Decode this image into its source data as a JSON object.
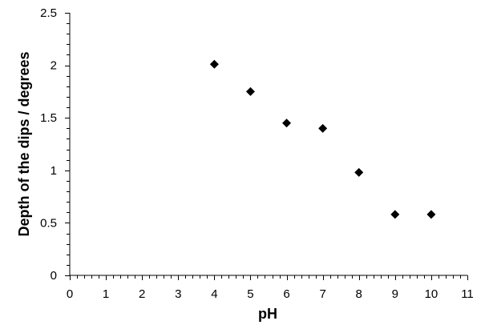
{
  "chart_data": {
    "type": "scatter",
    "xlabel": "pH",
    "ylabel": "Depth of the dips / degrees",
    "xlim": [
      0,
      11
    ],
    "ylim": [
      0,
      2.5
    ],
    "x_ticks": [
      "0",
      "1",
      "2",
      "3",
      "4",
      "5",
      "6",
      "7",
      "8",
      "9",
      "10",
      "11"
    ],
    "y_ticks": [
      "0",
      "0.5",
      "1",
      "1.5",
      "2",
      "2.5"
    ],
    "x_minor_step": 0.2,
    "y_minor_step": 0.1,
    "grid": false,
    "marker": "diamond",
    "marker_color": "#000000",
    "points": [
      {
        "x": 4,
        "y": 2.01
      },
      {
        "x": 5,
        "y": 1.75
      },
      {
        "x": 6,
        "y": 1.45
      },
      {
        "x": 7,
        "y": 1.4
      },
      {
        "x": 8,
        "y": 0.98
      },
      {
        "x": 9,
        "y": 0.58
      },
      {
        "x": 10,
        "y": 0.58
      }
    ]
  }
}
